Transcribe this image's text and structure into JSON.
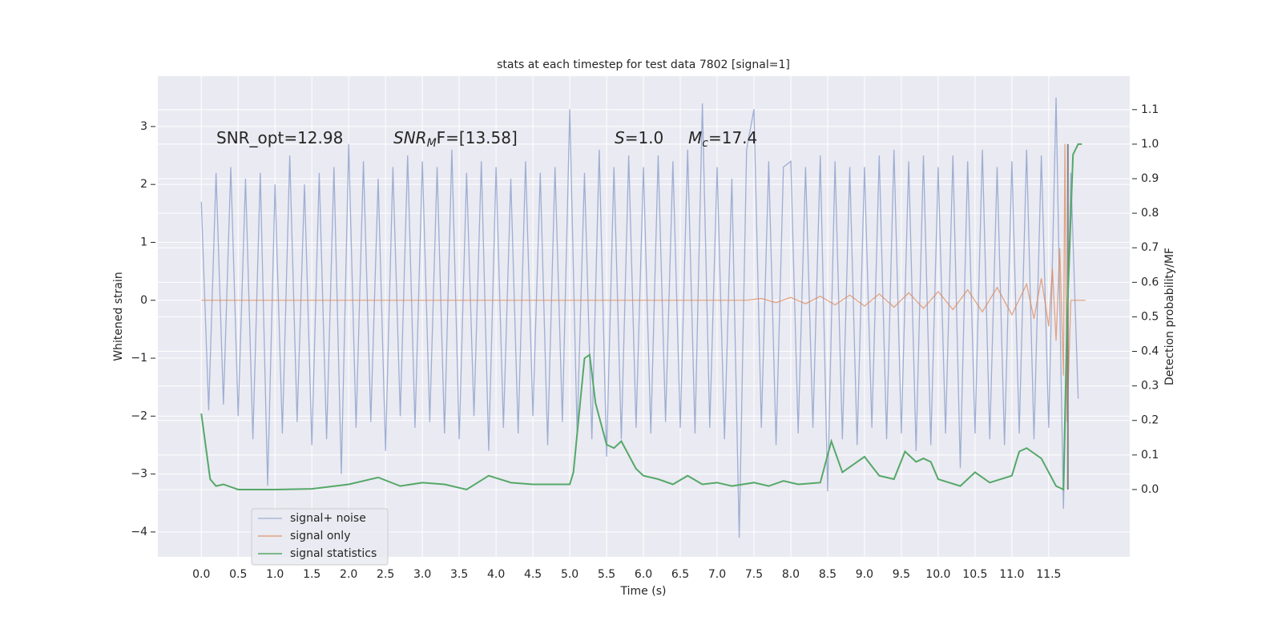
{
  "chart_data": {
    "type": "line",
    "title": "stats at each timestep for test data 7802 [signal=1]",
    "xlabel": "Time (s)",
    "ylabel": "Whitened strain",
    "y2label": "Detection probability/MF",
    "xlim": [
      -0.59,
      12.6
    ],
    "ylim": [
      -4.43,
      3.87
    ],
    "y2lim": [
      -0.195,
      1.197
    ],
    "grid": true,
    "legend": "lower left",
    "xticks": [
      {
        "value": 0,
        "label": "0.0"
      },
      {
        "value": 0.5,
        "label": "0.5"
      },
      {
        "value": 1,
        "label": "1.0"
      },
      {
        "value": 1.5,
        "label": "1.5"
      },
      {
        "value": 2,
        "label": "2.0"
      },
      {
        "value": 2.5,
        "label": "2.5"
      },
      {
        "value": 3,
        "label": "3.0"
      },
      {
        "value": 3.5,
        "label": "3.5"
      },
      {
        "value": 4,
        "label": "4.0"
      },
      {
        "value": 4.5,
        "label": "4.5"
      },
      {
        "value": 5,
        "label": "5.0"
      },
      {
        "value": 5.5,
        "label": "5.5"
      },
      {
        "value": 6,
        "label": "6.0"
      },
      {
        "value": 6.5,
        "label": "6.5"
      },
      {
        "value": 7,
        "label": "7.0"
      },
      {
        "value": 7.5,
        "label": "7.5"
      },
      {
        "value": 8,
        "label": "8.0"
      },
      {
        "value": 8.5,
        "label": "8.5"
      },
      {
        "value": 9,
        "label": "9.0"
      },
      {
        "value": 9.5,
        "label": "9.5"
      },
      {
        "value": 10,
        "label": "10.0"
      },
      {
        "value": 10.5,
        "label": "10.5"
      },
      {
        "value": 11,
        "label": "11.0"
      },
      {
        "value": 11.5,
        "label": "11.5"
      }
    ],
    "yticks": [
      {
        "value": -4,
        "label": "−4"
      },
      {
        "value": -3,
        "label": "−3"
      },
      {
        "value": -2,
        "label": "−2"
      },
      {
        "value": -1,
        "label": "−1"
      },
      0,
      1,
      2,
      3
    ],
    "y2ticks": [
      {
        "value": 0,
        "label": "0.0"
      },
      {
        "value": 0.1,
        "label": "0.1"
      },
      {
        "value": 0.2,
        "label": "0.2"
      },
      {
        "value": 0.3,
        "label": "0.3"
      },
      {
        "value": 0.4,
        "label": "0.4"
      },
      {
        "value": 0.5,
        "label": "0.5"
      },
      {
        "value": 0.6,
        "label": "0.6"
      },
      {
        "value": 0.7,
        "label": "0.7"
      },
      {
        "value": 0.8,
        "label": "0.8"
      },
      {
        "value": 0.9,
        "label": "0.9"
      },
      {
        "value": 1,
        "label": "1.0"
      },
      {
        "value": 1.1,
        "label": "1.1"
      }
    ],
    "annotations": [
      [
        {
          "t": "SNR_opt=12.98"
        }
      ],
      [
        {
          "t": "SNR",
          "style": "italic"
        },
        {
          "t": "M",
          "style": "sub"
        },
        {
          "t": "F=[13.58]"
        }
      ],
      [
        {
          "t": "S",
          "style": "italic"
        },
        {
          "t": "=1.0"
        }
      ],
      [
        {
          "t": "M",
          "style": "italic"
        },
        {
          "t": "c",
          "style": "sub"
        },
        {
          "t": "=17.4"
        }
      ]
    ],
    "vline": {
      "x": 11.76,
      "y2": [
        0,
        1
      ],
      "color": "#7f7f7f"
    },
    "series": [
      {
        "name": "signal+ noise",
        "color": "#8fa3cd",
        "x": [
          0,
          0.1,
          0.2,
          0.3,
          0.4,
          0.5,
          0.6,
          0.7,
          0.8,
          0.9,
          1,
          1.1,
          1.2,
          1.3,
          1.4,
          1.5,
          1.6,
          1.7,
          1.8,
          1.9,
          2,
          2.1,
          2.2,
          2.3,
          2.4,
          2.5,
          2.6,
          2.7,
          2.8,
          2.9,
          3,
          3.1,
          3.2,
          3.3,
          3.4,
          3.5,
          3.6,
          3.7,
          3.8,
          3.9,
          4,
          4.1,
          4.2,
          4.3,
          4.4,
          4.5,
          4.6,
          4.7,
          4.8,
          4.9,
          5,
          5.1,
          5.2,
          5.3,
          5.4,
          5.5,
          5.6,
          5.7,
          5.8,
          5.9,
          6,
          6.1,
          6.2,
          6.3,
          6.4,
          6.5,
          6.6,
          6.7,
          6.8,
          6.9,
          7,
          7.1,
          7.2,
          7.3,
          7.4,
          7.5,
          7.6,
          7.7,
          7.8,
          7.9,
          8,
          8.1,
          8.2,
          8.3,
          8.4,
          8.5,
          8.6,
          8.7,
          8.8,
          8.9,
          9,
          9.1,
          9.2,
          9.3,
          9.4,
          9.5,
          9.6,
          9.7,
          9.8,
          9.9,
          10,
          10.1,
          10.2,
          10.3,
          10.4,
          10.5,
          10.6,
          10.7,
          10.8,
          10.9,
          11,
          11.1,
          11.2,
          11.3,
          11.4,
          11.5,
          11.6,
          11.7,
          11.8,
          11.9
        ],
        "values": [
          1.7,
          -1.9,
          2.2,
          -1.8,
          2.3,
          -2.0,
          2.1,
          -2.4,
          2.2,
          -3.2,
          2.0,
          -2.3,
          2.5,
          -2.1,
          2.0,
          -2.5,
          2.2,
          -2.4,
          2.3,
          -3.0,
          2.7,
          -2.2,
          2.4,
          -2.1,
          2.1,
          -2.6,
          2.3,
          -2.0,
          2.5,
          -2.2,
          2.4,
          -2.1,
          2.3,
          -2.3,
          2.6,
          -2.4,
          2.2,
          -2.0,
          2.4,
          -2.6,
          2.3,
          -2.2,
          2.1,
          -2.3,
          2.4,
          -2.0,
          2.2,
          -2.5,
          2.3,
          -2.1,
          3.3,
          -2.3,
          2.2,
          -2.4,
          2.6,
          -2.7,
          2.3,
          -2.4,
          2.5,
          -2.2,
          2.3,
          -2.3,
          2.5,
          -2.1,
          2.4,
          -2.2,
          2.6,
          -2.3,
          3.4,
          -2.2,
          2.3,
          -2.4,
          2.1,
          -4.1,
          2.6,
          3.3,
          -2.2,
          2.4,
          -2.5,
          2.3,
          2.4,
          -2.3,
          2.3,
          -2.2,
          2.5,
          -3.3,
          2.4,
          -2.4,
          2.3,
          -2.5,
          2.3,
          -2.2,
          2.5,
          -2.4,
          2.6,
          -2.3,
          2.4,
          -2.6,
          2.5,
          -2.5,
          2.3,
          -2.3,
          2.5,
          -2.9,
          2.4,
          -2.3,
          2.6,
          -2.4,
          2.3,
          -2.5,
          2.4,
          -2.3,
          2.6,
          -2.4,
          2.5,
          -2.2,
          3.5,
          -3.6,
          2.2,
          -1.7
        ]
      },
      {
        "name": "signal only",
        "color": "#dd8452",
        "x": [
          0,
          7.4,
          7.6,
          7.8,
          8.0,
          8.2,
          8.4,
          8.6,
          8.8,
          9.0,
          9.2,
          9.4,
          9.6,
          9.8,
          10.0,
          10.2,
          10.4,
          10.6,
          10.8,
          11.0,
          11.2,
          11.3,
          11.4,
          11.5,
          11.55,
          11.6,
          11.65,
          11.7,
          11.72,
          11.75,
          11.8,
          12.0
        ],
        "values": [
          0,
          0,
          0.03,
          -0.04,
          0.05,
          -0.06,
          0.07,
          -0.08,
          0.09,
          -0.1,
          0.11,
          -0.12,
          0.13,
          -0.14,
          0.15,
          -0.16,
          0.18,
          -0.2,
          0.22,
          -0.25,
          0.28,
          -0.32,
          0.38,
          -0.45,
          0.55,
          -0.7,
          0.9,
          -1.3,
          2.7,
          -2.1,
          0,
          0
        ]
      },
      {
        "name": "signal statistics",
        "color": "#55a868",
        "axis": "y2",
        "x": [
          0,
          0.12,
          0.2,
          0.3,
          0.5,
          1,
          1.5,
          2,
          2.4,
          2.7,
          3.0,
          3.3,
          3.6,
          3.9,
          4.2,
          4.5,
          4.8,
          5.0,
          5.05,
          5.2,
          5.27,
          5.35,
          5.5,
          5.6,
          5.7,
          5.9,
          6.0,
          6.2,
          6.4,
          6.6,
          6.8,
          7.0,
          7.2,
          7.5,
          7.7,
          7.9,
          8.1,
          8.4,
          8.55,
          8.7,
          8.9,
          9.0,
          9.2,
          9.4,
          9.55,
          9.7,
          9.8,
          9.9,
          10.0,
          10.3,
          10.5,
          10.7,
          11.0,
          11.1,
          11.2,
          11.4,
          11.6,
          11.7,
          11.75,
          11.83,
          11.9,
          11.95
        ],
        "values": [
          0.22,
          0.03,
          0.01,
          0.015,
          0,
          0,
          0.002,
          0.015,
          0.035,
          0.01,
          0.02,
          0.015,
          0,
          0.04,
          0.02,
          0.015,
          0.015,
          0.015,
          0.05,
          0.38,
          0.39,
          0.25,
          0.13,
          0.12,
          0.14,
          0.06,
          0.04,
          0.03,
          0.015,
          0.04,
          0.015,
          0.02,
          0.01,
          0.02,
          0.01,
          0.025,
          0.015,
          0.02,
          0.14,
          0.05,
          0.08,
          0.095,
          0.04,
          0.03,
          0.11,
          0.08,
          0.09,
          0.08,
          0.03,
          0.01,
          0.05,
          0.02,
          0.04,
          0.11,
          0.12,
          0.09,
          0.01,
          0,
          0.5,
          0.97,
          1,
          1
        ]
      }
    ]
  }
}
